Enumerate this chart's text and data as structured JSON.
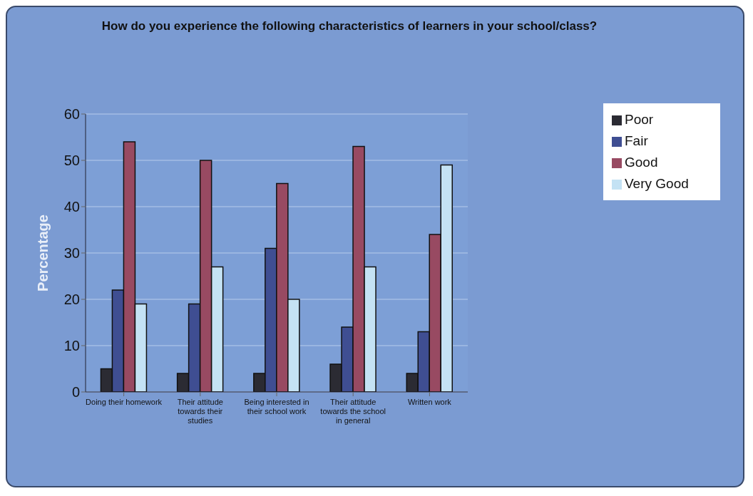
{
  "chart_data": {
    "type": "bar",
    "title": "How do you experience the following characteristics of learners in your school/class?",
    "ylabel": "Percentage",
    "categories": [
      "Doing their homework",
      "Their attitude towards their studies",
      "Being interested in their school work",
      "Their attitude towards the school in general",
      "Written work"
    ],
    "series": [
      {
        "name": "Poor",
        "color": "#2b2b33",
        "values": [
          5,
          4,
          4,
          6,
          4
        ]
      },
      {
        "name": "Fair",
        "color": "#3f4e92",
        "values": [
          22,
          19,
          31,
          14,
          13
        ]
      },
      {
        "name": "Good",
        "color": "#984a62",
        "values": [
          54,
          50,
          45,
          53,
          34
        ]
      },
      {
        "name": "Very Good",
        "color": "#c4e2f4",
        "values": [
          19,
          27,
          20,
          27,
          49
        ]
      }
    ],
    "ylim": [
      0,
      60
    ],
    "yticks": [
      0,
      10,
      20,
      30,
      40,
      50,
      60
    ],
    "grid": "y",
    "legend": "top right"
  }
}
